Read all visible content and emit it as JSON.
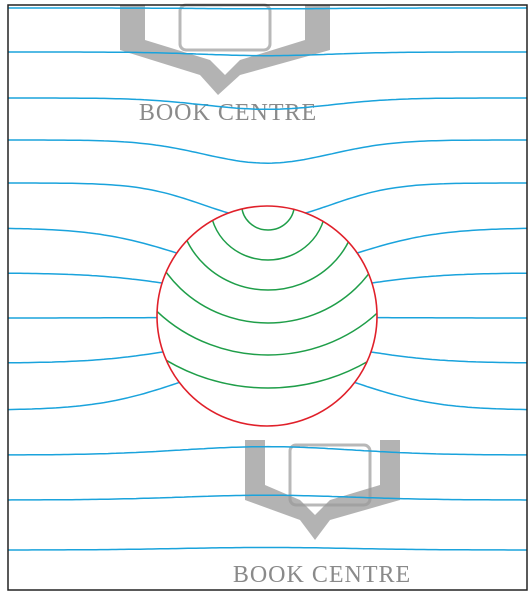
{
  "watermarks": [
    {
      "text": "BOOK CENTRE"
    },
    {
      "text": "BOOK CENTRE"
    }
  ]
}
